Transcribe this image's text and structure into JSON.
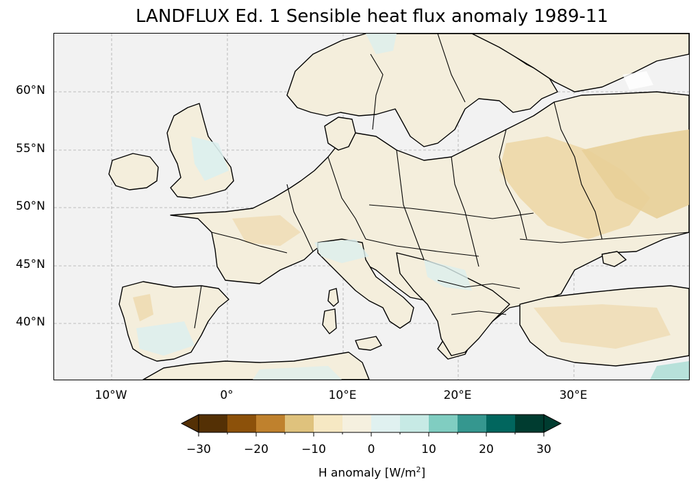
{
  "title": "LANDFLUX Ed. 1 Sensible heat flux anomaly 1989-11",
  "map": {
    "projection": "PlateCarree",
    "extent": {
      "lon_min": -15,
      "lon_max": 40,
      "lat_min": 35,
      "lat_max": 65
    },
    "gridlines": true,
    "ocean_color": "#f2f2f2",
    "coastline_color": "#000000",
    "lat_ticks": [
      "60°N",
      "55°N",
      "50°N",
      "45°N",
      "40°N"
    ],
    "lon_ticks": [
      "10°W",
      "0°",
      "10°E",
      "20°E",
      "30°E"
    ],
    "lat_tick_values": [
      60,
      55,
      50,
      45,
      40
    ],
    "lon_tick_values": [
      -10,
      0,
      10,
      20,
      30
    ]
  },
  "colorbar": {
    "label_text": "H anomaly [W/m",
    "label_sup": "2",
    "label_end": "]",
    "cmap": "BrBG",
    "vmin": -30,
    "vmax": 30,
    "extend": "both",
    "ticks": [
      "−30",
      "−20",
      "−10",
      "0",
      "10",
      "20",
      "30"
    ],
    "colors": [
      "#543005",
      "#8c510a",
      "#bf812d",
      "#dfc27d",
      "#f6e8c3",
      "#f5f0df",
      "#e0f1f0",
      "#c7eae5",
      "#80cdc1",
      "#35978f",
      "#01665e",
      "#003c30"
    ],
    "extend_low_color": "#543005",
    "extend_high_color": "#003c30"
  }
}
